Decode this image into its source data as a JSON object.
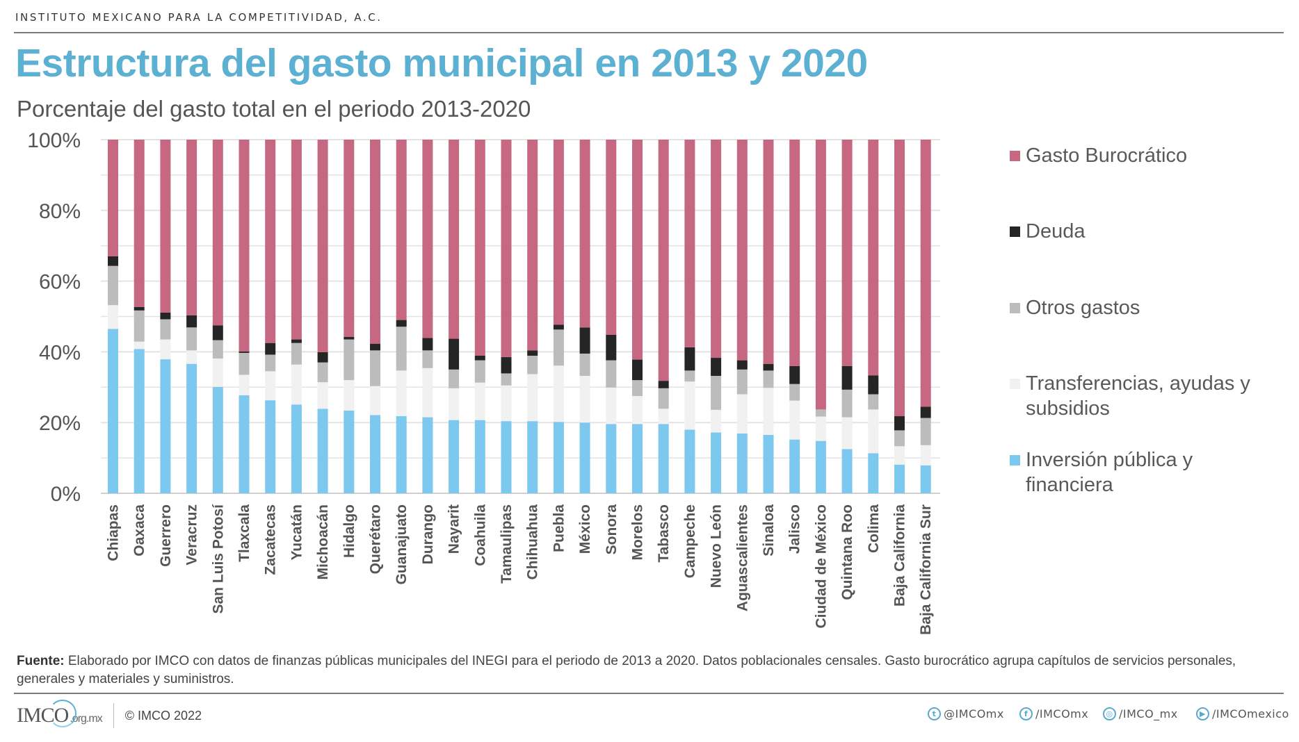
{
  "header": {
    "org_name": "INSTITUTO MEXICANO PARA LA COMPETITIVIDAD, A.C.",
    "title": "Estructura del gasto municipal en 2013 y 2020",
    "subtitle": "Porcentaje del gasto total en el periodo 2013-2020"
  },
  "colors": {
    "title": "#5cb0d2",
    "burocratico": "#c66882",
    "deuda": "#252525",
    "otros": "#bcbcbc",
    "transferencias": "#f1f1f1",
    "inversion": "#7cc8ee",
    "grid": "#d9d9d9"
  },
  "chart_data": {
    "type": "bar",
    "stacked": true,
    "percent": true,
    "title": "Estructura del gasto municipal en 2013 y 2020",
    "subtitle": "Porcentaje del gasto total en el periodo 2013-2020",
    "xlabel": "",
    "ylabel": "",
    "ylim": [
      0,
      100
    ],
    "yticks": [
      0,
      20,
      40,
      60,
      80,
      100
    ],
    "ytick_labels": [
      "0%",
      "20%",
      "40%",
      "60%",
      "80%",
      "100%"
    ],
    "grid": true,
    "legend_position": "right",
    "categories": [
      "Chiapas",
      "Oaxaca",
      "Guerrero",
      "Veracruz",
      "San Luis Potosí",
      "Tlaxcala",
      "Zacatecas",
      "Yucatán",
      "Michoacán",
      "Hidalgo",
      "Querétaro",
      "Guanajuato",
      "Durango",
      "Nayarit",
      "Coahuila",
      "Tamaulipas",
      "Chihuahua",
      "Puebla",
      "México",
      "Sonora",
      "Morelos",
      "Tabasco",
      "Campeche",
      "Nuevo León",
      "Aguascalientes",
      "Sinaloa",
      "Jalisco",
      "Ciudad de México",
      "Quintana Roo",
      "Colima",
      "Baja California",
      "Baja California Sur"
    ],
    "series": [
      {
        "name": "Inversión pública y financiera",
        "key": "inversion",
        "values": [
          46.5,
          40.8,
          37.9,
          36.6,
          30.1,
          27.7,
          26.3,
          25.1,
          23.9,
          23.4,
          22.1,
          21.8,
          21.5,
          20.7,
          20.7,
          20.4,
          20.4,
          20.2,
          20.0,
          19.6,
          19.6,
          19.6,
          18.0,
          17.2,
          16.9,
          16.5,
          15.2,
          14.8,
          12.5,
          11.3,
          8.1,
          7.9
        ]
      },
      {
        "name": "Transferencias, ayudas y subsidios",
        "key": "transferencias",
        "values": [
          6.7,
          2.1,
          5.6,
          3.8,
          8.0,
          5.8,
          8.2,
          11.3,
          7.5,
          8.6,
          8.2,
          12.9,
          13.9,
          9.0,
          10.6,
          10.1,
          13.3,
          15.9,
          13.2,
          10.3,
          7.9,
          4.3,
          13.6,
          6.4,
          11.1,
          13.3,
          11.0,
          6.9,
          9.0,
          12.4,
          5.2,
          5.7
        ]
      },
      {
        "name": "Otros gastos",
        "key": "otros",
        "values": [
          11.1,
          8.8,
          5.7,
          6.5,
          5.2,
          6.2,
          4.7,
          6.1,
          5.6,
          11.5,
          10.1,
          12.4,
          5.0,
          5.3,
          6.3,
          3.4,
          5.2,
          10.2,
          6.3,
          7.7,
          4.5,
          5.8,
          3.1,
          9.6,
          7.0,
          4.9,
          4.7,
          2.0,
          7.8,
          4.3,
          4.5,
          7.7
        ]
      },
      {
        "name": "Deuda",
        "key": "deuda",
        "values": [
          2.7,
          1.0,
          1.9,
          3.4,
          4.2,
          0.4,
          3.3,
          1.0,
          2.9,
          0.7,
          1.9,
          1.9,
          3.5,
          8.7,
          1.3,
          4.6,
          1.5,
          1.4,
          7.4,
          7.2,
          5.8,
          2.1,
          6.6,
          5.1,
          2.6,
          1.9,
          5.1,
          0.0,
          6.7,
          5.3,
          4.0,
          3.2
        ]
      },
      {
        "name": "Gasto Burocrático",
        "key": "burocratico",
        "values": [
          33.0,
          47.3,
          48.9,
          49.7,
          52.5,
          59.9,
          57.5,
          56.5,
          60.1,
          55.8,
          57.7,
          51.0,
          56.1,
          56.3,
          61.1,
          61.5,
          59.6,
          52.3,
          53.1,
          55.2,
          62.2,
          68.2,
          58.7,
          61.7,
          62.4,
          63.4,
          64.0,
          76.3,
          64.0,
          66.7,
          78.2,
          75.5
        ]
      }
    ],
    "legend": [
      "Gasto Burocrático",
      "Deuda",
      "Otros gastos",
      "Transferencias, ayudas y subsidios",
      "Inversión pública y financiera"
    ]
  },
  "legend": {
    "items": [
      {
        "label": "Gasto Burocrático",
        "key": "burocratico"
      },
      {
        "label": "Deuda",
        "key": "deuda"
      },
      {
        "label": "Otros gastos",
        "key": "otros"
      },
      {
        "label": "Transferencias, ayudas y subsidios",
        "key": "transferencias"
      },
      {
        "label": "Inversión pública y financiera",
        "key": "inversion"
      }
    ]
  },
  "footnote": {
    "label": "Fuente:",
    "text": " Elaborado por IMCO con datos de finanzas públicas municipales del INEGI para el periodo de 2013 a 2020. Datos poblacionales censales. Gasto burocrático agrupa capítulos de servicios personales, generales y materiales y suministros."
  },
  "footer": {
    "logo_text": "IMCO",
    "logo_domain": ".org.mx",
    "copyright": "© IMCO 2022",
    "social": [
      {
        "icon": "twitter-icon",
        "glyph": "t",
        "label": "@IMCOmx"
      },
      {
        "icon": "facebook-icon",
        "glyph": "f",
        "label": "/IMCOmx"
      },
      {
        "icon": "instagram-icon",
        "glyph": "◎",
        "label": "/IMCO_mx"
      },
      {
        "icon": "youtube-icon",
        "glyph": "▶",
        "label": "/IMCOmexico"
      }
    ]
  }
}
